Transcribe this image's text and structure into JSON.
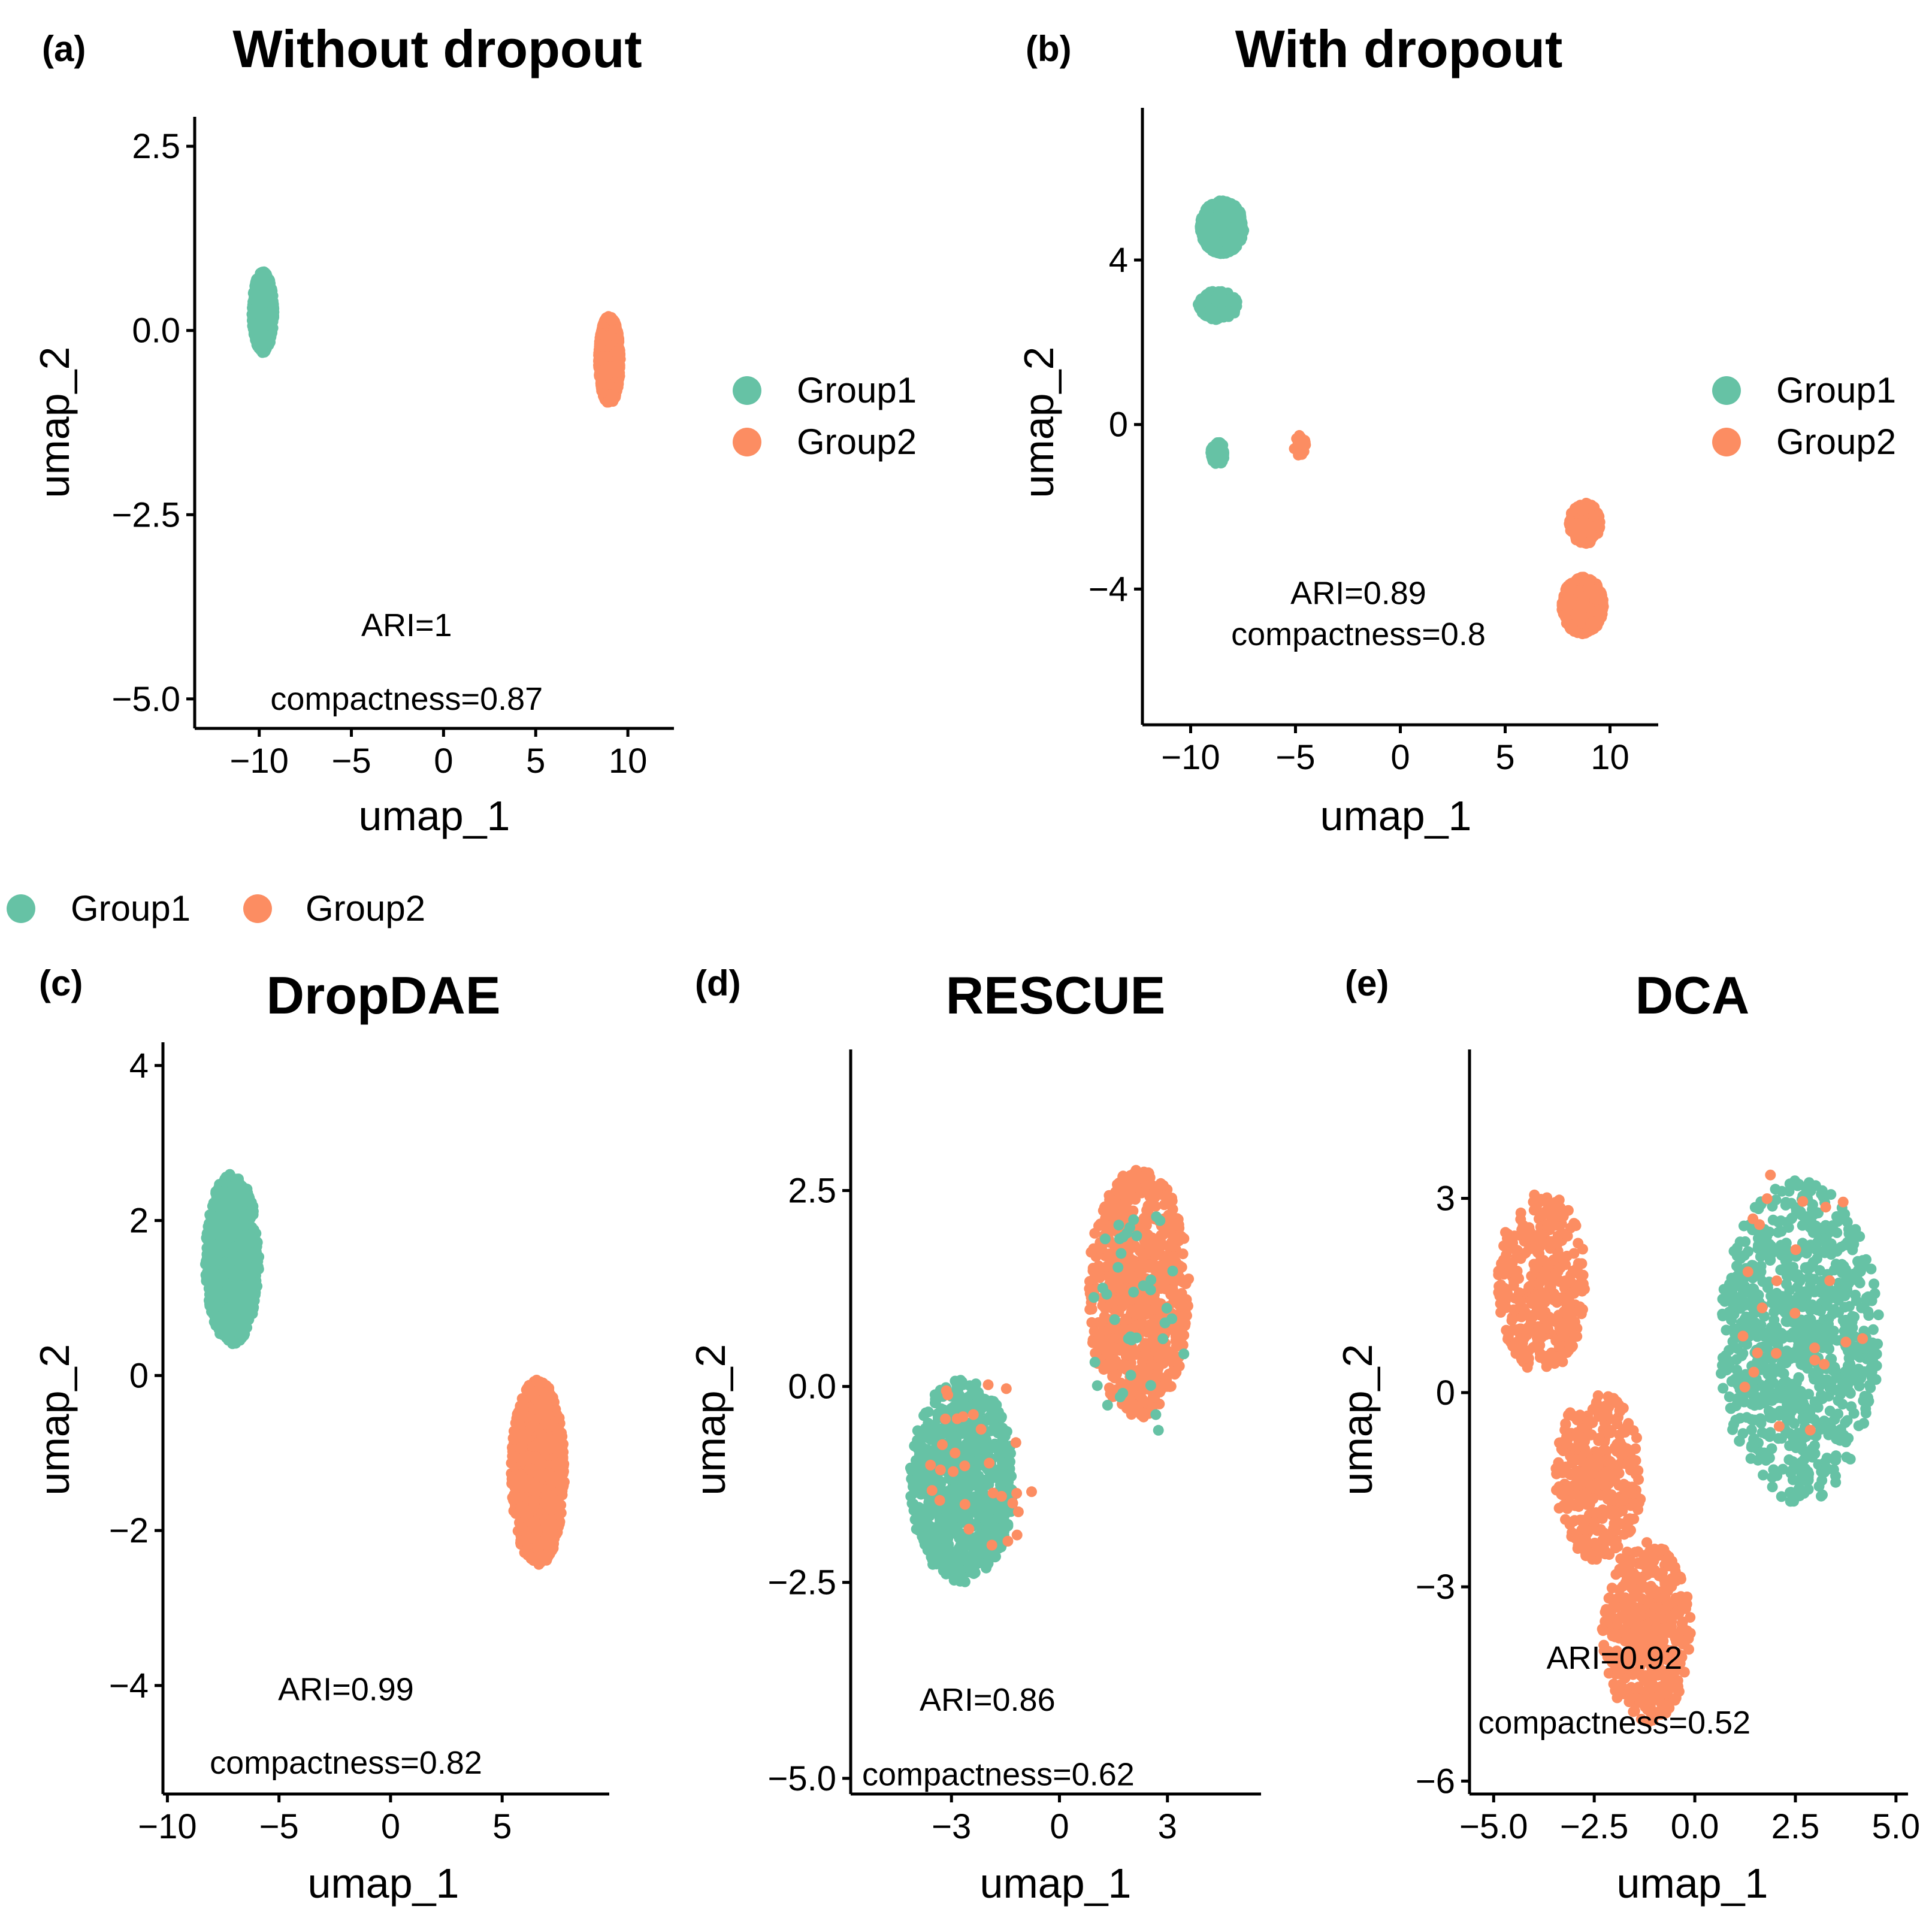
{
  "colors": {
    "Group1": "#66C2A5",
    "Group2": "#FC8D62"
  },
  "legend_labels": [
    "Group1",
    "Group2"
  ],
  "chart_data": [
    {
      "id": "a",
      "type": "scatter",
      "panel_label": "(a)",
      "title": "Without dropout",
      "xlabel": "umap_1",
      "ylabel": "umap_2",
      "xlim": [
        -13.5,
        12.5
      ],
      "ylim": [
        -5.4,
        2.9
      ],
      "xticks": [
        -10,
        -5,
        0,
        5,
        10
      ],
      "xtick_labels": [
        "−10",
        "−5",
        "0",
        "5",
        "10"
      ],
      "yticks": [
        2.5,
        0.0,
        -2.5,
        -5.0
      ],
      "ytick_labels": [
        "2.5",
        "0.0",
        "−2.5",
        "−5.0"
      ],
      "annotations": [
        "ARI=1",
        "compactness=0.87"
      ],
      "annotation_positions": [
        [
          -2,
          -4.0
        ],
        [
          -2,
          -5.0
        ]
      ],
      "clusters": [
        {
          "group": "Group1",
          "center": [
            -9.8,
            0.25
          ],
          "spread": [
            1.2,
            1.1
          ],
          "n": 1200
        },
        {
          "group": "Group2",
          "center": [
            9.0,
            -0.4
          ],
          "spread": [
            1.2,
            1.2
          ],
          "n": 1200
        }
      ]
    },
    {
      "id": "b",
      "type": "scatter",
      "panel_label": "(b)",
      "title": "With dropout",
      "xlabel": "umap_1",
      "ylabel": "umap_2",
      "xlim": [
        -12.3,
        12.3
      ],
      "ylim": [
        -7.3,
        7.7
      ],
      "xticks": [
        -10,
        -5,
        0,
        5,
        10
      ],
      "xtick_labels": [
        "−10",
        "−5",
        "0",
        "5",
        "10"
      ],
      "yticks": [
        4,
        0,
        -4
      ],
      "ytick_labels": [
        "4",
        "0",
        "−4"
      ],
      "annotations": [
        "ARI=0.89",
        "compactness=0.8"
      ],
      "annotation_positions": [
        [
          -2,
          -4.1
        ],
        [
          -2,
          -5.1
        ]
      ],
      "clusters": [
        {
          "group": "Group1",
          "center": [
            -8.5,
            4.8
          ],
          "spread": [
            2.1,
            1.3
          ],
          "n": 1000
        },
        {
          "group": "Group1",
          "center": [
            -8.7,
            2.9
          ],
          "spread": [
            1.9,
            0.7
          ],
          "n": 300
        },
        {
          "group": "Group1",
          "center": [
            -8.7,
            -0.7
          ],
          "spread": [
            0.7,
            0.55
          ],
          "n": 140
        },
        {
          "group": "Group2",
          "center": [
            -4.8,
            -0.5
          ],
          "spread": [
            0.6,
            0.5
          ],
          "n": 40
        },
        {
          "group": "Group2",
          "center": [
            8.7,
            -4.4
          ],
          "spread": [
            2.0,
            1.4
          ],
          "n": 1000
        },
        {
          "group": "Group2",
          "center": [
            8.8,
            -2.4
          ],
          "spread": [
            1.5,
            1.0
          ],
          "n": 250
        }
      ]
    },
    {
      "id": "c",
      "type": "scatter",
      "panel_label": "(c)",
      "title": "DropDAE",
      "xlabel": "umap_1",
      "ylabel": "umap_2",
      "xlim": [
        -10.2,
        9.8
      ],
      "ylim": [
        -5.4,
        4.3
      ],
      "xticks": [
        -10,
        -5,
        0,
        5
      ],
      "xtick_labels": [
        "−10",
        "−5",
        "0",
        "5"
      ],
      "yticks": [
        4,
        2,
        0,
        -2,
        -4
      ],
      "ytick_labels": [
        "4",
        "2",
        "0",
        "−2",
        "−4"
      ],
      "annotations": [
        "ARI=0.99",
        "compactness=0.82"
      ],
      "annotation_positions": [
        [
          -2,
          -4.05
        ],
        [
          -2,
          -5.0
        ]
      ],
      "clusters": [
        {
          "group": "Group1",
          "center": [
            -7.1,
            1.5
          ],
          "spread": [
            2.4,
            2.2
          ],
          "n": 1200
        },
        {
          "group": "Group2",
          "center": [
            6.6,
            -1.25
          ],
          "spread": [
            2.4,
            2.4
          ],
          "n": 1200
        }
      ]
    },
    {
      "id": "d",
      "type": "scatter",
      "panel_label": "(d)",
      "title": "RESCUE",
      "xlabel": "umap_1",
      "ylabel": "umap_2",
      "xlim": [
        -5.8,
        5.6
      ],
      "ylim": [
        -5.2,
        4.3
      ],
      "xticks": [
        -3,
        0,
        3
      ],
      "xtick_labels": [
        "−3",
        "0",
        "3"
      ],
      "yticks": [
        2.5,
        0.0,
        -2.5,
        -5.0
      ],
      "ytick_labels": [
        "2.5",
        "0.0",
        "−2.5",
        "−5.0"
      ],
      "annotations": [
        "ARI=0.86",
        "compactness=0.62"
      ],
      "annotation_positions": [
        [
          -2.0,
          -4.0
        ],
        [
          -1.7,
          -4.95
        ]
      ],
      "clusters": [
        {
          "group": "Group1",
          "center": [
            -2.7,
            -1.2
          ],
          "spread": [
            2.9,
            2.6
          ],
          "n": 800
        },
        {
          "group": "Group2",
          "center": [
            2.2,
            1.2
          ],
          "spread": [
            2.8,
            3.2
          ],
          "n": 800
        },
        {
          "group": "Group1",
          "center": [
            2.3,
            0.8
          ],
          "spread": [
            3.0,
            3.0
          ],
          "n": 40
        },
        {
          "group": "Group2",
          "center": [
            -2.2,
            -1.0
          ],
          "spread": [
            3.0,
            2.5
          ],
          "n": 30
        }
      ]
    },
    {
      "id": "e",
      "type": "scatter",
      "panel_label": "(e)",
      "title": "DCA",
      "xlabel": "umap_1",
      "ylabel": "umap_2",
      "xlim": [
        -5.6,
        5.3
      ],
      "ylim": [
        -6.2,
        5.3
      ],
      "xticks": [
        -5.0,
        -2.5,
        0.0,
        2.5,
        5.0
      ],
      "xtick_labels": [
        "−5.0",
        "−2.5",
        "0.0",
        "2.5",
        "5.0"
      ],
      "yticks": [
        3,
        0,
        -3,
        -6
      ],
      "ytick_labels": [
        "3",
        "0",
        "−3",
        "−6"
      ],
      "annotations": [
        "ARI=0.92",
        "compactness=0.52"
      ],
      "annotation_positions": [
        [
          -2.0,
          -4.1
        ],
        [
          -2.0,
          -5.1
        ]
      ],
      "clusters": [
        {
          "group": "Group1",
          "center": [
            2.6,
            0.8
          ],
          "spread": [
            4.0,
            5.0
          ],
          "n": 900
        },
        {
          "group": "Group2",
          "center": [
            -3.8,
            1.7
          ],
          "spread": [
            2.2,
            2.8
          ],
          "n": 350
        },
        {
          "group": "Group2",
          "center": [
            -2.4,
            -1.3
          ],
          "spread": [
            2.2,
            2.6
          ],
          "n": 350
        },
        {
          "group": "Group2",
          "center": [
            -1.2,
            -3.7
          ],
          "spread": [
            2.2,
            2.8
          ],
          "n": 450
        },
        {
          "group": "Group2",
          "center": [
            2.6,
            1.5
          ],
          "spread": [
            3.6,
            4.5
          ],
          "n": 25
        }
      ]
    }
  ]
}
